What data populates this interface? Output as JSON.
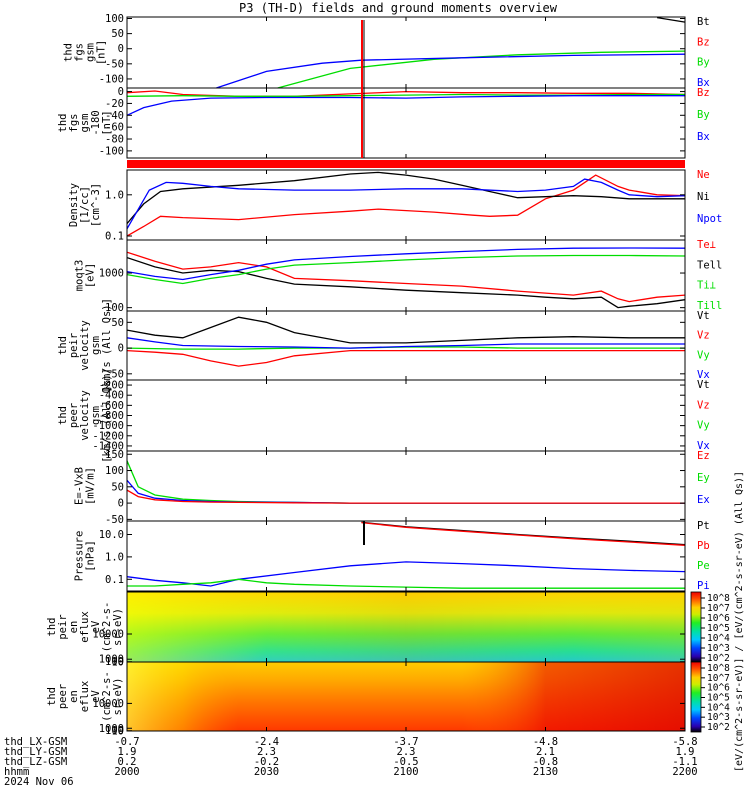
{
  "title": "P3 (TH-D) fields and ground moments overview",
  "colors": {
    "black": "#000000",
    "red": "#ff0000",
    "green": "#00dd00",
    "blue": "#0000ff"
  },
  "chart_data": [
    {
      "type": "line",
      "panel": "fgs-gsm",
      "ylabel": [
        "thd",
        "fgs",
        "gsm",
        "[nT]"
      ],
      "yticks": [
        "100",
        "50",
        "0",
        "-50",
        "-100"
      ],
      "ylim": [
        -130,
        105
      ],
      "legend": [
        {
          "name": "Bt",
          "color": "black"
        },
        {
          "name": "Bz",
          "color": "red"
        },
        {
          "name": "By",
          "color": "green"
        },
        {
          "name": "Bx",
          "color": "blue"
        }
      ],
      "series": [
        {
          "name": "Bt",
          "color": "black",
          "x": [
            0.95,
            1.0
          ],
          "y": [
            103,
            88
          ]
        },
        {
          "name": "By",
          "color": "green",
          "x": [
            0.27,
            0.4,
            0.55,
            0.7,
            0.85,
            1.0
          ],
          "y": [
            -130,
            -65,
            -35,
            -20,
            -12,
            -8
          ]
        },
        {
          "name": "Bx",
          "color": "blue",
          "x": [
            0.16,
            0.25,
            0.35,
            0.42,
            0.6,
            0.8,
            1.0
          ],
          "y": [
            -130,
            -75,
            -48,
            -38,
            -30,
            -22,
            -18
          ]
        }
      ]
    },
    {
      "type": "line",
      "panel": "fgs-gsm-recent",
      "ylabel": [
        "thd",
        "fgs",
        "gsm",
        "-180",
        "[nT]"
      ],
      "yticks": [
        "0",
        "-20",
        "-40",
        "-60",
        "-80",
        "-100"
      ],
      "ylim": [
        -112,
        6
      ],
      "legend": [
        {
          "name": "Bz",
          "color": "red"
        },
        {
          "name": "By",
          "color": "green"
        },
        {
          "name": "Bx",
          "color": "blue"
        }
      ],
      "series": [
        {
          "name": "Bz",
          "color": "red",
          "x": [
            0,
            0.05,
            0.1,
            0.2,
            0.3,
            0.4,
            0.5,
            0.6,
            0.7,
            0.8,
            0.9,
            1.0
          ],
          "y": [
            -2,
            1,
            -5,
            -8,
            -8,
            -4,
            0,
            -2,
            -2,
            -3,
            -3,
            -5
          ]
        },
        {
          "name": "By",
          "color": "green",
          "x": [
            0,
            0.1,
            0.2,
            0.3,
            0.4,
            0.5,
            0.6,
            0.7,
            0.8,
            0.9,
            1.0
          ],
          "y": [
            -8,
            -7,
            -8,
            -8,
            -7,
            -6,
            -5,
            -6,
            -6,
            -5,
            -5
          ]
        },
        {
          "name": "Bx",
          "color": "blue",
          "x": [
            0,
            0.03,
            0.08,
            0.15,
            0.25,
            0.4,
            0.5,
            0.6,
            0.7,
            0.8,
            0.9,
            1.0
          ],
          "y": [
            -40,
            -27,
            -16,
            -11,
            -10,
            -10,
            -11,
            -9,
            -8,
            -7,
            -7,
            -7
          ]
        }
      ]
    },
    {
      "type": "line",
      "panel": "density",
      "ylabel": [
        "Density",
        "[1/cc]",
        "[cm^-3]"
      ],
      "yticks": [
        "1.0",
        "0.1"
      ],
      "ylim": [
        0.08,
        4
      ],
      "log": true,
      "legend": [
        {
          "name": "Ne",
          "color": "red"
        },
        {
          "name": "Ni",
          "color": "black"
        },
        {
          "name": "Npot",
          "color": "blue"
        }
      ],
      "series": [
        {
          "name": "Ne",
          "color": "red",
          "x": [
            0,
            0.03,
            0.06,
            0.1,
            0.2,
            0.3,
            0.4,
            0.45,
            0.55,
            0.62,
            0.65,
            0.7,
            0.75,
            0.8,
            0.84,
            0.88,
            0.9,
            0.95,
            1.0
          ],
          "y": [
            0.1,
            0.17,
            0.3,
            0.28,
            0.25,
            0.33,
            0.4,
            0.45,
            0.38,
            0.32,
            0.3,
            0.32,
            0.8,
            1.3,
            3.0,
            1.6,
            1.3,
            1.0,
            0.95
          ]
        },
        {
          "name": "Ni",
          "color": "black",
          "x": [
            0,
            0.03,
            0.06,
            0.1,
            0.2,
            0.3,
            0.4,
            0.45,
            0.5,
            0.55,
            0.6,
            0.65,
            0.7,
            0.75,
            0.8,
            0.85,
            0.9,
            0.95,
            1.0
          ],
          "y": [
            0.2,
            0.6,
            1.2,
            1.4,
            1.7,
            2.2,
            3.2,
            3.5,
            3.0,
            2.4,
            1.7,
            1.2,
            0.85,
            0.9,
            0.95,
            0.9,
            0.8,
            0.8,
            0.8
          ]
        },
        {
          "name": "Npot",
          "color": "blue",
          "x": [
            0,
            0.04,
            0.07,
            0.1,
            0.15,
            0.2,
            0.3,
            0.4,
            0.5,
            0.6,
            0.7,
            0.75,
            0.8,
            0.82,
            0.85,
            0.88,
            0.9,
            0.95,
            1.0
          ],
          "y": [
            0.15,
            1.3,
            2.0,
            1.9,
            1.6,
            1.4,
            1.3,
            1.3,
            1.4,
            1.4,
            1.2,
            1.3,
            1.6,
            2.4,
            2.0,
            1.3,
            1.0,
            0.9,
            0.95
          ]
        }
      ]
    },
    {
      "type": "line",
      "panel": "temperature",
      "ylabel": [
        "moqt3",
        "[eV]"
      ],
      "yticks": [
        "1000",
        "100"
      ],
      "ylim": [
        80,
        9000
      ],
      "log": true,
      "legend": [
        {
          "name": "Te⊥",
          "color": "red"
        },
        {
          "name": "Tell",
          "color": "black"
        },
        {
          "name": "Ti⊥",
          "color": "green"
        },
        {
          "name": "Till",
          "color": "green"
        }
      ],
      "series": [
        {
          "name": "Te⊥",
          "color": "red",
          "x": [
            0,
            0.05,
            0.1,
            0.15,
            0.2,
            0.25,
            0.3,
            0.4,
            0.5,
            0.6,
            0.7,
            0.8,
            0.85,
            0.88,
            0.9,
            0.95,
            1.0
          ],
          "y": [
            4000,
            2200,
            1300,
            1500,
            2000,
            1500,
            700,
            600,
            500,
            420,
            300,
            230,
            300,
            180,
            150,
            200,
            230
          ]
        },
        {
          "name": "Tell",
          "color": "black",
          "x": [
            0,
            0.05,
            0.1,
            0.15,
            0.2,
            0.25,
            0.3,
            0.4,
            0.5,
            0.6,
            0.7,
            0.75,
            0.8,
            0.85,
            0.88,
            0.9,
            0.95,
            1.0
          ],
          "y": [
            2800,
            1500,
            1000,
            1200,
            1100,
            700,
            480,
            400,
            320,
            270,
            230,
            200,
            180,
            200,
            100,
            110,
            130,
            170
          ]
        },
        {
          "name": "Ti⊥",
          "color": "blue",
          "x": [
            0,
            0.05,
            0.1,
            0.15,
            0.2,
            0.25,
            0.3,
            0.4,
            0.5,
            0.6,
            0.7,
            0.8,
            0.9,
            1.0
          ],
          "y": [
            1100,
            800,
            650,
            900,
            1200,
            1800,
            2400,
            3000,
            3600,
            4200,
            4800,
            5200,
            5300,
            5200
          ]
        },
        {
          "name": "Till",
          "color": "green",
          "x": [
            0,
            0.05,
            0.1,
            0.15,
            0.2,
            0.25,
            0.3,
            0.4,
            0.5,
            0.6,
            0.7,
            0.8,
            0.9,
            1.0
          ],
          "y": [
            900,
            650,
            500,
            700,
            900,
            1300,
            1700,
            2000,
            2400,
            2800,
            3100,
            3200,
            3200,
            3100
          ]
        }
      ]
    },
    {
      "type": "line",
      "panel": "peir-velocity",
      "ylabel": [
        "thd",
        "peir",
        "velocity",
        "gsm",
        "[km/s (All Qs)]"
      ],
      "yticks": [
        "50",
        "0",
        "-50"
      ],
      "ylim": [
        -62,
        72
      ],
      "legend": [
        {
          "name": "Vt",
          "color": "black"
        },
        {
          "name": "Vz",
          "color": "red"
        },
        {
          "name": "Vy",
          "color": "green"
        },
        {
          "name": "Vx",
          "color": "blue"
        }
      ],
      "series": [
        {
          "name": "Vt",
          "color": "black",
          "x": [
            0,
            0.05,
            0.1,
            0.15,
            0.2,
            0.25,
            0.3,
            0.4,
            0.5,
            0.6,
            0.7,
            0.8,
            0.9,
            1.0
          ],
          "y": [
            35,
            25,
            20,
            40,
            60,
            50,
            30,
            10,
            10,
            15,
            20,
            22,
            20,
            20
          ]
        },
        {
          "name": "Vz",
          "color": "red",
          "x": [
            0,
            0.05,
            0.1,
            0.15,
            0.2,
            0.25,
            0.3,
            0.4,
            0.5,
            0.6,
            0.7,
            0.8,
            0.9,
            1.0
          ],
          "y": [
            -5,
            -8,
            -12,
            -25,
            -35,
            -28,
            -15,
            -5,
            -5,
            -5,
            -5,
            -5,
            -5,
            -5
          ]
        },
        {
          "name": "Vy",
          "color": "green",
          "x": [
            0,
            0.1,
            0.2,
            0.3,
            0.4,
            0.5,
            0.6,
            0.7,
            0.8,
            0.9,
            1.0
          ],
          "y": [
            0,
            -2,
            -2,
            0,
            0,
            2,
            2,
            0,
            0,
            0,
            0
          ]
        },
        {
          "name": "Vx",
          "color": "blue",
          "x": [
            0,
            0.05,
            0.1,
            0.2,
            0.3,
            0.4,
            0.5,
            0.6,
            0.7,
            0.8,
            0.9,
            1.0
          ],
          "y": [
            20,
            12,
            5,
            3,
            2,
            0,
            3,
            5,
            8,
            8,
            8,
            8
          ]
        }
      ]
    },
    {
      "type": "line",
      "panel": "peer-velocity",
      "ylabel": [
        "thd",
        "peer",
        "velocity",
        "gsm",
        "[km/s (All Qs)]"
      ],
      "yticks": [
        "-200",
        "-400",
        "-600",
        "-800",
        "-1000",
        "-1200",
        "-1400"
      ],
      "ylim": [
        -1500,
        -100
      ],
      "legend": [
        {
          "name": "Vt",
          "color": "black"
        },
        {
          "name": "Vz",
          "color": "red"
        },
        {
          "name": "Vy",
          "color": "green"
        },
        {
          "name": "Vx",
          "color": "blue"
        }
      ],
      "series": []
    },
    {
      "type": "line",
      "panel": "efield",
      "ylabel": [
        "E=-VxB",
        "[mV/m]"
      ],
      "yticks": [
        "150",
        "100",
        "50",
        "0",
        "-50"
      ],
      "ylim": [
        -55,
        160
      ],
      "legend": [
        {
          "name": "Ez",
          "color": "red"
        },
        {
          "name": "Ey",
          "color": "green"
        },
        {
          "name": "Ex",
          "color": "blue"
        }
      ],
      "series": [
        {
          "name": "Ey",
          "color": "green",
          "x": [
            0,
            0.02,
            0.05,
            0.1,
            0.15,
            0.2,
            0.3,
            0.4,
            0.6,
            0.8,
            1.0
          ],
          "y": [
            130,
            50,
            25,
            12,
            8,
            5,
            2,
            0,
            0,
            0,
            0
          ]
        },
        {
          "name": "Ex",
          "color": "blue",
          "x": [
            0,
            0.02,
            0.05,
            0.1,
            0.15,
            0.2,
            0.3,
            0.4,
            0.6,
            0.8,
            1.0
          ],
          "y": [
            70,
            30,
            15,
            8,
            5,
            3,
            2,
            0,
            0,
            0,
            0
          ]
        },
        {
          "name": "Ez",
          "color": "red",
          "x": [
            0,
            0.02,
            0.05,
            0.1,
            0.15,
            0.2,
            0.3,
            0.4,
            0.6,
            0.8,
            1.0
          ],
          "y": [
            40,
            20,
            10,
            5,
            3,
            2,
            1,
            0,
            0,
            0,
            0
          ]
        }
      ]
    },
    {
      "type": "line",
      "panel": "pressure",
      "ylabel": [
        "Pressure",
        "[nPa]"
      ],
      "yticks": [
        "10.0",
        "1.0",
        "0.1"
      ],
      "ylim": [
        0.03,
        40
      ],
      "log": true,
      "legend": [
        {
          "name": "Pt",
          "color": "black"
        },
        {
          "name": "Pb",
          "color": "red"
        },
        {
          "name": "Pe",
          "color": "green"
        },
        {
          "name": "Pi",
          "color": "blue"
        }
      ],
      "series": [
        {
          "name": "Pt",
          "color": "black",
          "x": [
            0.42,
            0.5,
            0.6,
            0.7,
            0.8,
            0.9,
            1.0
          ],
          "y": [
            35,
            22,
            15,
            10,
            7,
            5,
            3.5
          ]
        },
        {
          "name": "Pb",
          "color": "red",
          "x": [
            0.42,
            0.5,
            0.6,
            0.7,
            0.8,
            0.9,
            1.0
          ],
          "y": [
            34,
            21,
            14,
            9.5,
            6.5,
            4.6,
            3.3
          ]
        },
        {
          "name": "Pi",
          "color": "blue",
          "x": [
            0,
            0.05,
            0.1,
            0.15,
            0.2,
            0.3,
            0.4,
            0.5,
            0.6,
            0.7,
            0.8,
            0.9,
            1.0
          ],
          "y": [
            0.13,
            0.09,
            0.07,
            0.05,
            0.1,
            0.2,
            0.4,
            0.6,
            0.5,
            0.4,
            0.3,
            0.25,
            0.22
          ]
        },
        {
          "name": "Pe",
          "color": "green",
          "x": [
            0,
            0.05,
            0.1,
            0.15,
            0.2,
            0.25,
            0.3,
            0.4,
            0.5,
            0.6,
            0.7,
            0.8,
            0.9,
            1.0
          ],
          "y": [
            0.05,
            0.05,
            0.06,
            0.07,
            0.1,
            0.07,
            0.06,
            0.05,
            0.045,
            0.04,
            0.04,
            0.04,
            0.04,
            0.04
          ]
        }
      ]
    },
    {
      "type": "heatmap",
      "panel": "peir-spectrogram",
      "ylabel": [
        "thd",
        "peir",
        "en",
        "eflux",
        "eV",
        "(cm^2-s-",
        "sr-eV)"
      ],
      "yticks": [
        "10000",
        "1000",
        "100",
        "10"
      ],
      "ylim": [
        5,
        25000
      ],
      "colorbar_ticks": [
        "10^8",
        "10^7",
        "10^6",
        "10^5",
        "10^4",
        "10^3",
        "10^2"
      ]
    },
    {
      "type": "heatmap",
      "panel": "peer-spectrogram",
      "ylabel": [
        "thd",
        "peer",
        "en",
        "eflux",
        "eV",
        "(cm^2-s-",
        "sr-eV)"
      ],
      "yticks": [
        "10000",
        "1000",
        "100",
        "10"
      ],
      "ylim": [
        5,
        25000
      ],
      "colorbar_ticks": [
        "10^8",
        "10^7",
        "10^6",
        "10^5",
        "10^4",
        "10^3",
        "10^2"
      ]
    }
  ],
  "colorbar_label": "[eV/(cm^2-s-sr-eV)] / [eV/(cm^2-s-sr-eV) (All Qs)]",
  "time_axis": {
    "rows": [
      {
        "label": "thd_LX-GSM",
        "values": [
          "-0.7",
          "-2.4",
          "-3.7",
          "-4.8",
          "-5.8"
        ]
      },
      {
        "label": "thd_LY-GSM",
        "values": [
          "1.9",
          "2.3",
          "2.3",
          "2.1",
          "1.9"
        ]
      },
      {
        "label": "thd_LZ-GSM",
        "values": [
          "0.2",
          "-0.2",
          "-0.5",
          "-0.8",
          "-1.1"
        ]
      },
      {
        "label": "hhmm",
        "values": [
          "2000",
          "2030",
          "2100",
          "2130",
          "2200"
        ]
      }
    ],
    "date": "2024 Nov 06"
  }
}
